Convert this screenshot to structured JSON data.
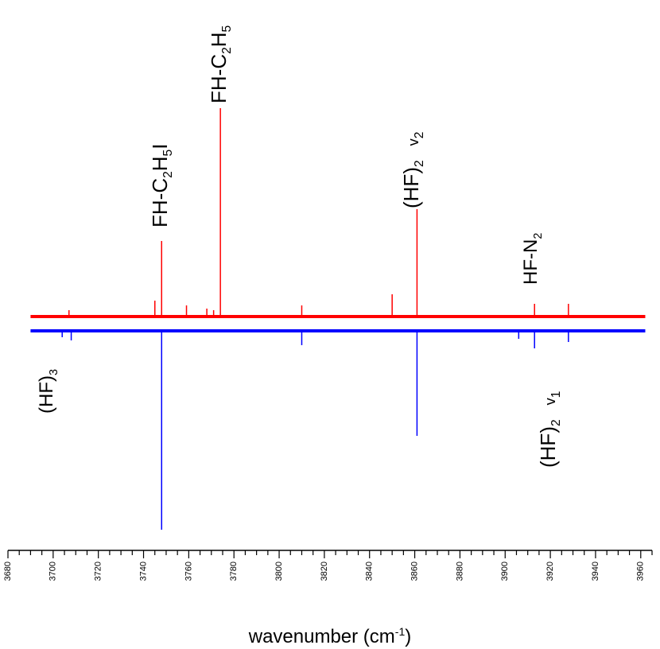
{
  "chart_data": {
    "type": "line",
    "xlabel_main": "wavenumber (cm",
    "xlabel_sup": "-1",
    "xlabel_tail": ")",
    "xlim": [
      3680,
      3965
    ],
    "x_ticks": [
      3680,
      3700,
      3720,
      3740,
      3760,
      3780,
      3800,
      3820,
      3840,
      3860,
      3880,
      3900,
      3920,
      3940,
      3960
    ],
    "series": [
      {
        "color": "#ff0000",
        "direction": "up",
        "peaks": [
          {
            "x": 3707,
            "height": 8
          },
          {
            "x": 3745,
            "height": 20
          },
          {
            "x": 3748,
            "height": 95
          },
          {
            "x": 3759,
            "height": 14
          },
          {
            "x": 3768,
            "height": 10
          },
          {
            "x": 3771,
            "height": 8
          },
          {
            "x": 3774,
            "height": 262
          },
          {
            "x": 3810,
            "height": 14
          },
          {
            "x": 3850,
            "height": 28
          },
          {
            "x": 3861,
            "height": 135
          },
          {
            "x": 3913,
            "height": 16
          },
          {
            "x": 3928,
            "height": 16
          }
        ]
      },
      {
        "color": "#0000ff",
        "direction": "down",
        "peaks": [
          {
            "x": 3704,
            "height": 8
          },
          {
            "x": 3708,
            "height": 12
          },
          {
            "x": 3748,
            "height": 250
          },
          {
            "x": 3810,
            "height": 18
          },
          {
            "x": 3861,
            "height": 132
          },
          {
            "x": 3906,
            "height": 10
          },
          {
            "x": 3913,
            "height": 22
          },
          {
            "x": 3928,
            "height": 14
          }
        ]
      }
    ],
    "annotations": [
      {
        "id": "fh-c2h5i",
        "main": "FH-C",
        "s1": "2",
        "mid": "H",
        "s2": "5",
        "tail": "I",
        "sub_tail": false,
        "x": 3748,
        "side": "top"
      },
      {
        "id": "fh-c2h5",
        "main": "FH-C",
        "s1": "2",
        "mid": "H",
        "s2": "5",
        "tail": "",
        "sub_tail": false,
        "x": 3774,
        "side": "top"
      },
      {
        "id": "hf2-v2",
        "main": "(HF)",
        "s1": "2",
        "mid": "",
        "s2": "",
        "tail": "v",
        "sub_tail": "2",
        "x": 3861,
        "side": "top"
      },
      {
        "id": "hf-n2",
        "main": "HF-N",
        "s1": "2",
        "mid": "",
        "s2": "",
        "tail": "",
        "sub_tail": false,
        "x": 3913,
        "side": "top"
      },
      {
        "id": "hf3",
        "main": "(HF)",
        "s1": "3",
        "mid": "",
        "s2": "",
        "tail": "",
        "sub_tail": false,
        "x": 3707,
        "side": "bottom"
      },
      {
        "id": "hf2-v1",
        "main": "(HF)",
        "s1": "2",
        "mid": "",
        "s2": "",
        "tail": "v",
        "sub_tail": "1",
        "x": 3925,
        "side": "bottom"
      }
    ]
  }
}
